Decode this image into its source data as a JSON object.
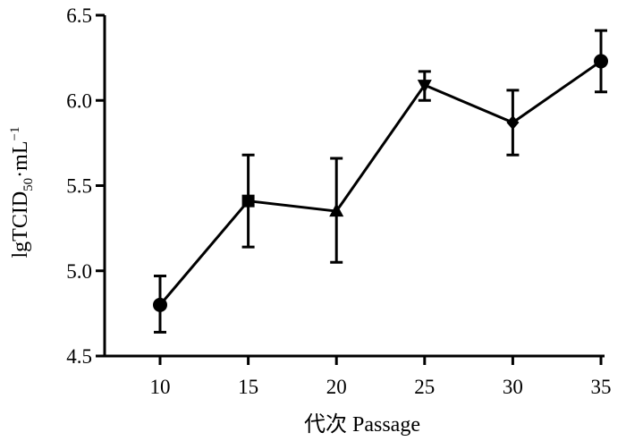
{
  "chart_data": {
    "type": "line",
    "xlabel": "代次 Passage",
    "ylabel": {
      "prefix": "lgTCID",
      "sub": "50",
      "mid": "·mL",
      "sup": "−1"
    },
    "x": [
      10,
      15,
      20,
      25,
      30,
      35
    ],
    "y": [
      4.8,
      5.41,
      5.35,
      6.09,
      5.87,
      6.23
    ],
    "error_low": [
      4.64,
      5.14,
      5.05,
      6.0,
      5.68,
      6.05
    ],
    "error_high": [
      4.97,
      5.68,
      5.66,
      6.17,
      6.06,
      6.41
    ],
    "markers": [
      "circle",
      "square",
      "triangle-up",
      "triangle-down",
      "diamond",
      "circle"
    ],
    "ylim": [
      4.5,
      6.5
    ],
    "yticks": [
      4.5,
      5.0,
      5.5,
      6.0,
      6.5
    ],
    "ytick_labels": [
      "4.5",
      "5.0",
      "5.5",
      "6.0",
      "6.5"
    ],
    "xticks": [
      10,
      15,
      20,
      25,
      30,
      35
    ],
    "xtick_labels": [
      "10",
      "15",
      "20",
      "25",
      "30",
      "35"
    ],
    "grid": false,
    "legend": "none",
    "color": "#000000"
  }
}
